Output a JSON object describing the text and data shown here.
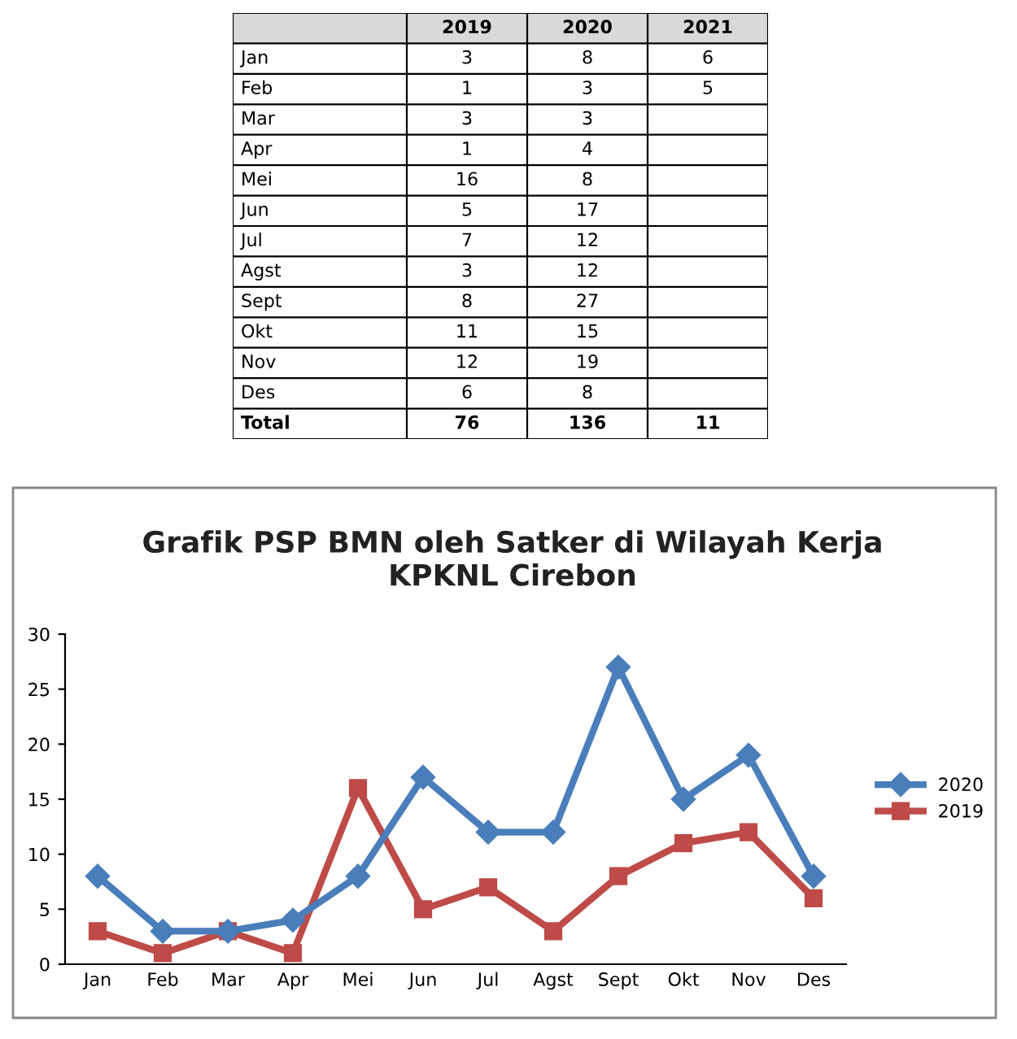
{
  "chart_data": [
    {
      "type": "other",
      "categories": [
        "Jan",
        "Feb",
        "Mar",
        "Apr",
        "Mei",
        "Jun",
        "Jul",
        "Agst",
        "Sept",
        "Okt",
        "Nov",
        "Des",
        "Total"
      ],
      "data_labels": true,
      "series": [
        {
          "name": "2019",
          "values": [
            3,
            1,
            3,
            1,
            16,
            5,
            7,
            3,
            8,
            11,
            12,
            6,
            76
          ]
        },
        {
          "name": "2020",
          "values": [
            8,
            3,
            3,
            4,
            8,
            17,
            12,
            12,
            27,
            15,
            19,
            8,
            136
          ]
        },
        {
          "name": "2021",
          "values": [
            6,
            5,
            null,
            null,
            null,
            null,
            null,
            null,
            null,
            null,
            null,
            null,
            11
          ]
        }
      ]
    },
    {
      "type": "line",
      "title": "Grafik PSP BMN oleh Satker di Wilayah Kerja\nKPKNL Cirebon",
      "categories": [
        "Jan",
        "Feb",
        "Mar",
        "Apr",
        "Mei",
        "Jun",
        "Jul",
        "Agst",
        "Sept",
        "Okt",
        "Nov",
        "Des"
      ],
      "ylim": [
        0,
        30
      ],
      "yticks": [
        0,
        5,
        10,
        15,
        20,
        25,
        30
      ],
      "grid": false,
      "legend": "right",
      "series": [
        {
          "name": "2020",
          "color": "#4a7ebb",
          "marker": "diamond",
          "values": [
            8,
            3,
            3,
            4,
            8,
            17,
            12,
            12,
            27,
            15,
            19,
            8
          ]
        },
        {
          "name": "2019",
          "color": "#be4b48",
          "marker": "square",
          "values": [
            3,
            1,
            3,
            1,
            16,
            5,
            7,
            3,
            8,
            11,
            12,
            6
          ]
        }
      ]
    }
  ]
}
